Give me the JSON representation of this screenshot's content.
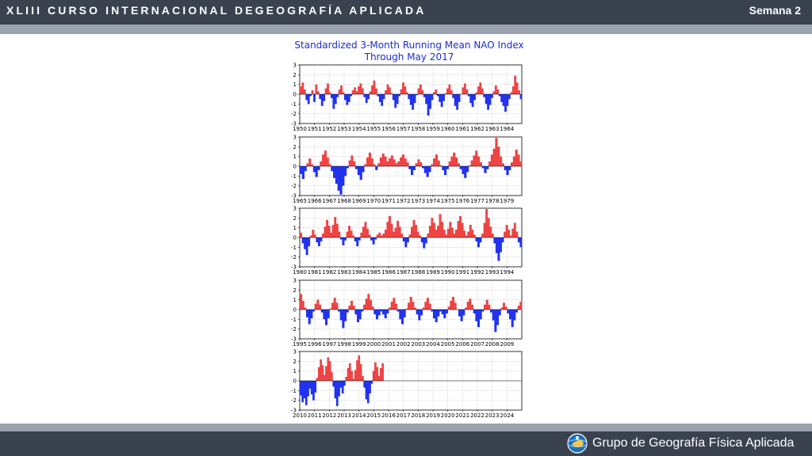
{
  "header": {
    "title": "XLIII CURSO INTERNACIONAL DEGEOGRAFÍA APLICADA",
    "week": "Semana 2"
  },
  "footer": {
    "org_name": "Grupo de Geografía Física Aplicada",
    "logo_icon": "globe-logo-icon"
  },
  "colors": {
    "positive": "#ef4444",
    "negative": "#2233ee",
    "title": "#1a2bd6",
    "header_bg": "#3a4250",
    "stripe": "#9aa3ad"
  },
  "chart_data": {
    "type": "area",
    "title": [
      "Standardized 3-Month Running Mean NAO Index",
      "Through May 2017"
    ],
    "xlabel": "",
    "ylabel": "",
    "grid": true,
    "ylim": [
      -3,
      3
    ],
    "y_ticks": [
      3,
      2,
      1,
      0,
      -1,
      -2,
      -3
    ],
    "panels": [
      {
        "start_year": 1950,
        "x_ticks": [
          "1950",
          "1951",
          "1952",
          "1953",
          "1954",
          "1955",
          "1956",
          "1957",
          "1958",
          "1959",
          "1960",
          "1961",
          "1962",
          "1963",
          "1964"
        ],
        "values": [
          0.8,
          1.2,
          0.5,
          -0.6,
          -1.0,
          -0.2,
          0.4,
          -0.8,
          1.0,
          0.3,
          -0.5,
          -1.2,
          -0.7,
          0.6,
          1.1,
          0.2,
          -0.4,
          -1.5,
          -1.0,
          -0.3,
          0.5,
          0.9,
          0.2,
          -0.6,
          -1.1,
          -0.8,
          -0.2,
          0.4,
          0.7,
          0.3,
          0.8,
          1.1,
          0.6,
          -0.3,
          -0.9,
          -0.5,
          0.3,
          0.9,
          1.4,
          0.6,
          -0.2,
          -0.8,
          -1.2,
          -0.5,
          0.4,
          1.0,
          0.7,
          0.1,
          -0.6,
          -1.4,
          -1.0,
          -0.2,
          0.5,
          1.2,
          0.8,
          0.2,
          -0.5,
          -1.1,
          -1.6,
          -0.9,
          -0.1,
          0.6,
          1.0,
          0.4,
          -0.3,
          -1.0,
          -2.2,
          -1.5,
          -0.6,
          0.2,
          0.5,
          -0.2,
          -0.8,
          -1.3,
          -0.7,
          0.1,
          0.6,
          1.0,
          0.4,
          -0.4,
          -1.2,
          -1.6,
          -0.8,
          0.0,
          0.7,
          1.1,
          0.5,
          -0.2,
          -0.9,
          -1.3,
          -0.6,
          0.2,
          0.8,
          1.2,
          0.6,
          -0.3,
          -1.0,
          -1.6,
          -1.1,
          -0.4,
          0.3,
          0.9,
          0.5,
          -0.2,
          -0.8,
          -1.2,
          -1.8,
          -1.2,
          -0.5,
          0.2,
          0.8,
          1.9,
          1.2,
          0.4,
          -0.5
        ]
      },
      {
        "start_year": 1965,
        "x_ticks": [
          "1965",
          "1966",
          "1967",
          "1968",
          "1969",
          "1970",
          "1971",
          "1972",
          "1973",
          "1974",
          "1975",
          "1976",
          "1977",
          "1978",
          "1979"
        ],
        "values": [
          -0.8,
          -1.3,
          -0.5,
          0.3,
          0.8,
          0.2,
          -0.6,
          -1.1,
          -0.4,
          0.5,
          1.2,
          1.6,
          0.9,
          0.2,
          -0.5,
          -1.2,
          -1.8,
          -2.5,
          -2.9,
          -2.0,
          -1.0,
          -0.2,
          0.6,
          1.1,
          0.5,
          -0.3,
          -0.9,
          -1.4,
          -0.6,
          0.2,
          0.9,
          1.4,
          0.8,
          0.2,
          -0.4,
          0.3,
          0.9,
          1.3,
          1.0,
          0.5,
          0.8,
          1.1,
          0.7,
          0.3,
          0.5,
          0.9,
          1.2,
          0.8,
          0.4,
          -0.3,
          -0.9,
          -0.4,
          0.3,
          0.7,
          0.4,
          -0.2,
          -0.7,
          -1.1,
          -0.6,
          0.2,
          0.8,
          1.2,
          0.6,
          0.1,
          -0.4,
          -0.9,
          -0.3,
          0.5,
          1.0,
          1.4,
          0.9,
          0.3,
          -0.3,
          -0.8,
          -1.2,
          -0.6,
          0.1,
          0.6,
          1.1,
          1.6,
          1.0,
          0.4,
          -0.2,
          -0.7,
          -0.3,
          0.5,
          1.2,
          1.8,
          2.9,
          2.0,
          1.0,
          0.3,
          -0.4,
          -0.9,
          -0.4,
          0.4,
          1.0,
          1.7,
          1.2,
          0.5
        ]
      },
      {
        "start_year": 1980,
        "x_ticks": [
          "1980",
          "1981",
          "1982",
          "1983",
          "1984",
          "1985",
          "1986",
          "1987",
          "1988",
          "1989",
          "1990",
          "1991",
          "1992",
          "1993",
          "1994"
        ],
        "values": [
          0.5,
          -0.6,
          -1.2,
          -1.8,
          -0.9,
          0.2,
          0.8,
          0.3,
          -0.5,
          -0.9,
          -0.4,
          0.4,
          1.1,
          1.8,
          1.2,
          0.5,
          1.3,
          2.1,
          1.4,
          0.6,
          -0.2,
          -0.8,
          -0.3,
          0.6,
          1.2,
          0.7,
          0.2,
          -0.4,
          -0.9,
          -0.3,
          0.5,
          1.1,
          1.6,
          0.9,
          0.3,
          -0.3,
          -0.7,
          -0.2,
          0.3,
          0.5,
          0.2,
          0.4,
          0.8,
          1.6,
          2.2,
          1.4,
          0.6,
          1.0,
          1.7,
          1.1,
          0.4,
          -0.4,
          -1.0,
          -0.5,
          0.3,
          1.1,
          1.8,
          1.3,
          0.6,
          0.2,
          -0.5,
          -1.1,
          -0.6,
          0.4,
          1.2,
          2.0,
          1.5,
          0.8,
          1.2,
          2.4,
          1.6,
          0.8,
          0.3,
          0.9,
          1.6,
          1.0,
          0.4,
          0.8,
          1.7,
          2.2,
          1.5,
          0.7,
          0.2,
          0.6,
          1.3,
          0.8,
          0.3,
          -0.4,
          -1.0,
          -0.5,
          0.4,
          1.5,
          2.9,
          2.0,
          1.1,
          0.4,
          -0.6,
          -1.6,
          -2.4,
          -1.5,
          -0.5,
          0.6,
          1.3,
          0.8,
          0.2,
          0.9,
          1.5,
          0.6,
          -0.5,
          -1.0
        ]
      },
      {
        "start_year": 1995,
        "x_ticks": [
          "1995",
          "1996",
          "1997",
          "1998",
          "1999",
          "2000",
          "2001",
          "2002",
          "2003",
          "2004",
          "2005",
          "2006",
          "2007",
          "2008",
          "2009"
        ],
        "values": [
          1.6,
          0.9,
          0.2,
          -0.8,
          -1.5,
          -0.9,
          -0.2,
          0.6,
          1.0,
          0.5,
          -0.3,
          -1.0,
          -1.6,
          -0.9,
          0.1,
          0.7,
          1.2,
          0.7,
          -0.2,
          -1.1,
          -1.9,
          -1.2,
          -0.3,
          0.4,
          0.9,
          0.4,
          -0.5,
          -1.3,
          -1.0,
          -0.2,
          0.5,
          1.1,
          1.6,
          1.0,
          0.3,
          -0.5,
          -1.0,
          -0.6,
          -0.2,
          -0.5,
          -0.9,
          -0.4,
          0.2,
          0.8,
          1.2,
          0.6,
          -0.2,
          -1.0,
          -1.5,
          -0.8,
          0.1,
          0.7,
          1.3,
          0.8,
          0.2,
          -0.5,
          -1.1,
          -0.6,
          0.2,
          0.8,
          1.2,
          0.6,
          -0.2,
          -0.9,
          -1.3,
          -0.7,
          -0.2,
          -0.5,
          -0.9,
          -0.4,
          0.3,
          0.9,
          1.3,
          0.7,
          0.0,
          -0.7,
          -1.2,
          -0.6,
          0.2,
          0.8,
          1.1,
          0.5,
          -0.4,
          -1.2,
          -1.8,
          -1.0,
          -0.2,
          0.5,
          1.0,
          0.5,
          -0.3,
          -1.1,
          -2.3,
          -1.6,
          -0.6,
          0.2,
          0.7,
          0.3,
          -0.4,
          -1.0,
          -1.8,
          -1.1,
          -0.3,
          0.4,
          0.8
        ]
      },
      {
        "start_year": 2010,
        "x_ticks": [
          "2010",
          "2011",
          "2012",
          "2013",
          "2014",
          "2015",
          "2016",
          "2017",
          "2018",
          "2019",
          "2020",
          "2021",
          "2022",
          "2023",
          "2024"
        ],
        "values": [
          -1.5,
          -2.2,
          -1.8,
          -2.5,
          -1.6,
          -0.8,
          -1.4,
          -2.0,
          -1.2,
          0.3,
          1.4,
          2.2,
          1.6,
          0.6,
          1.5,
          2.4,
          2.0,
          0.9,
          -0.6,
          -1.8,
          -2.6,
          -1.6,
          -0.7,
          -1.3,
          -0.5,
          0.4,
          1.3,
          1.8,
          1.0,
          0.2,
          1.1,
          2.1,
          2.6,
          1.7,
          0.5,
          -0.7,
          -1.9,
          -2.3,
          -1.3,
          -0.3,
          1.0,
          1.9,
          1.4,
          0.5,
          1.3,
          1.8
        ]
      }
    ]
  }
}
